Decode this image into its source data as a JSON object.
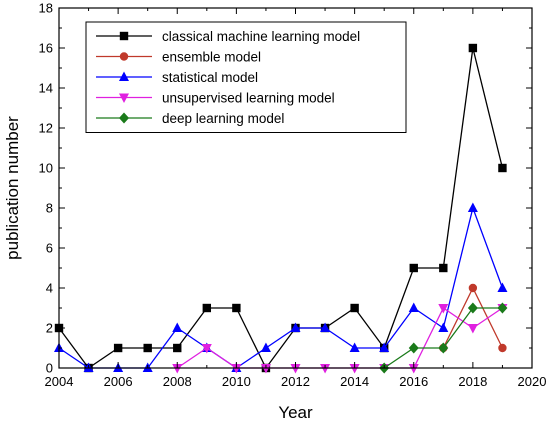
{
  "chart_data": {
    "type": "line",
    "xlabel": "Year",
    "ylabel": "publication number",
    "xlim": [
      2004,
      2020
    ],
    "ylim": [
      0,
      18
    ],
    "xticks": [
      2004,
      2006,
      2008,
      2010,
      2012,
      2014,
      2016,
      2018,
      2020
    ],
    "yticks": [
      0,
      2,
      4,
      6,
      8,
      10,
      12,
      14,
      16,
      18
    ],
    "grid": false,
    "legend_position": "top-left",
    "series": [
      {
        "name": "classical machine learning model",
        "color": "#000000",
        "marker": "square",
        "x": [
          2004,
          2005,
          2006,
          2007,
          2008,
          2009,
          2010,
          2011,
          2012,
          2013,
          2014,
          2015,
          2016,
          2017,
          2018,
          2019
        ],
        "y": [
          2,
          0,
          1,
          1,
          1,
          3,
          3,
          0,
          2,
          2,
          3,
          1,
          5,
          5,
          16,
          10
        ]
      },
      {
        "name": "ensemble model",
        "color": "#c0392b",
        "marker": "circle",
        "x": [
          2017,
          2018,
          2019
        ],
        "y": [
          1,
          4,
          1
        ]
      },
      {
        "name": "statistical model",
        "color": "#0000ff",
        "marker": "triangle-up",
        "x": [
          2004,
          2005,
          2006,
          2007,
          2008,
          2009,
          2010,
          2011,
          2012,
          2013,
          2014,
          2015,
          2016,
          2017,
          2018,
          2019
        ],
        "y": [
          1,
          0,
          0,
          0,
          2,
          1,
          0,
          1,
          2,
          2,
          1,
          1,
          3,
          2,
          8,
          4
        ]
      },
      {
        "name": "unsupervised learning model",
        "color": "#e020e0",
        "marker": "triangle-down",
        "x": [
          2008,
          2009,
          2010,
          2011,
          2012,
          2013,
          2014,
          2015,
          2016,
          2017,
          2018,
          2019
        ],
        "y": [
          0,
          1,
          0,
          0,
          0,
          0,
          0,
          0,
          0,
          3,
          2,
          3
        ]
      },
      {
        "name": "deep learning model",
        "color": "#1a7a1a",
        "marker": "diamond",
        "x": [
          2015,
          2016,
          2017,
          2018,
          2019
        ],
        "y": [
          0,
          1,
          1,
          3,
          3
        ]
      }
    ]
  }
}
